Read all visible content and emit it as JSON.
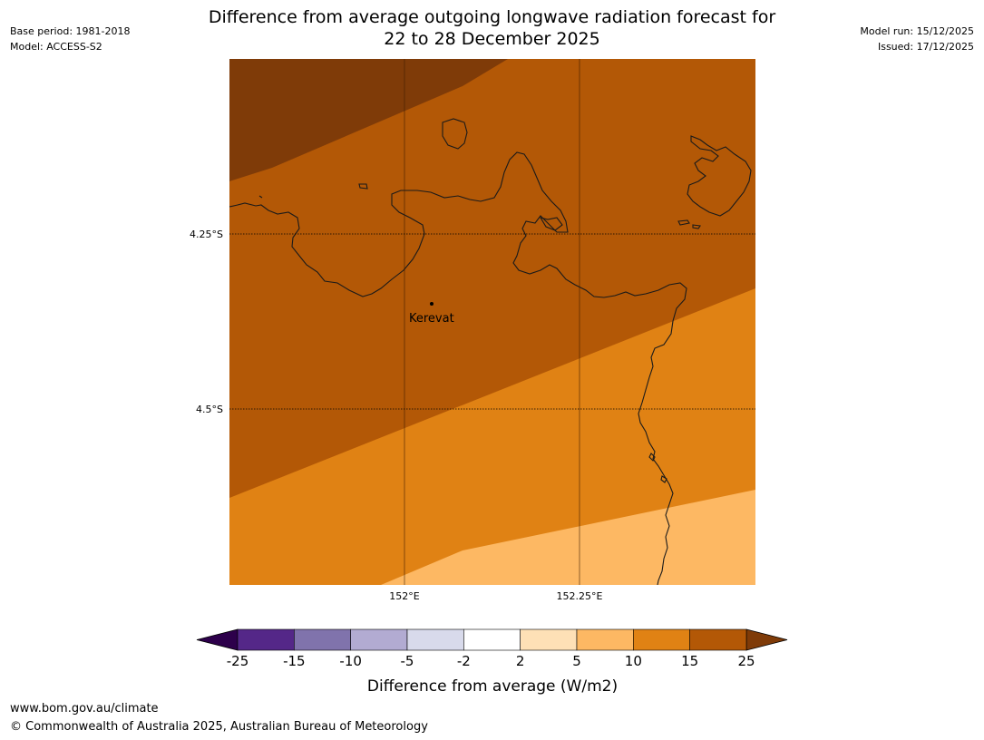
{
  "header": {
    "base_period": "Base period: 1981-2018",
    "model": "Model: ACCESS-S2",
    "model_run": "Model run: 15/12/2025",
    "issued": "Issued: 17/12/2025",
    "title_line1": "Difference from average outgoing longwave radiation forecast for",
    "title_line2": "22 to 28 December 2025"
  },
  "map": {
    "lat_labels": [
      "4.25°S",
      "4.5°S"
    ],
    "lon_labels": [
      "152°E",
      "152.25°E"
    ],
    "place": {
      "name": "Kerevat"
    },
    "colors": {
      "band_25_plus": "#7f3b08",
      "band_15_25": "#b35806",
      "band_10_15": "#e08214",
      "band_5_10": "#fdb863"
    }
  },
  "colorbar": {
    "ticks": [
      "-25",
      "-15",
      "-10",
      "-5",
      "-2",
      "2",
      "5",
      "10",
      "15",
      "25"
    ],
    "colors": [
      "#2d004b",
      "#542788",
      "#8073ac",
      "#b2abd2",
      "#d8daeb",
      "#ffffff",
      "#fee0b6",
      "#fdb863",
      "#e08214",
      "#b35806",
      "#7f3b08"
    ],
    "label": "Difference from average (W/m2)"
  },
  "footer": {
    "url": "www.bom.gov.au/climate",
    "copyright": "© Commonwealth of Australia 2025, Australian Bureau of Meteorology"
  }
}
